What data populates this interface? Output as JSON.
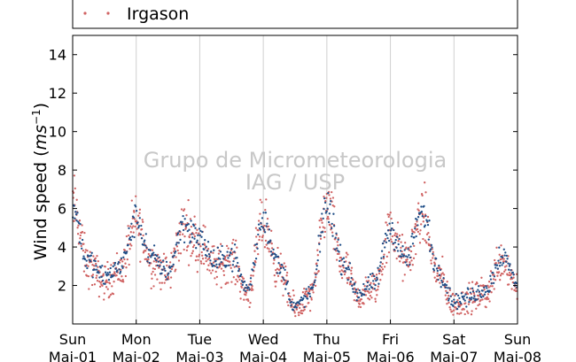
{
  "chart_data": {
    "type": "scatter",
    "title": "",
    "xlabel": "",
    "ylabel": "Wind speed (ms⁻¹)",
    "ylabel_main": "Wind speed (",
    "ylabel_unit_base": "ms",
    "ylabel_unit_exp": "−1",
    "ylabel_close": ")",
    "ylim": [
      0,
      15
    ],
    "yticks": [
      2,
      4,
      6,
      8,
      10,
      12,
      14
    ],
    "xlim": [
      0,
      7
    ],
    "grid": "vertical",
    "legend_placement": "top",
    "legend": [
      {
        "name": "Irgason",
        "color": "#d06262"
      }
    ],
    "watermark": [
      "Grupo de Micrometeorologia",
      "IAG / USP"
    ],
    "x_ticks": [
      {
        "day": "Sun",
        "date": "Mai-01"
      },
      {
        "day": "Mon",
        "date": "Mai-02"
      },
      {
        "day": "Tue",
        "date": "Mai-03"
      },
      {
        "day": "Wed",
        "date": "Mai-04"
      },
      {
        "day": "Thu",
        "date": "Mai-05"
      },
      {
        "day": "Fri",
        "date": "Mai-06"
      },
      {
        "day": "Sat",
        "date": "Mai-07"
      },
      {
        "day": "Sun",
        "date": "Mai-08"
      }
    ],
    "series": [
      {
        "name": "Irgason",
        "color": "#d06262",
        "x": [
          0,
          0.25,
          0.5,
          0.75,
          1,
          1.25,
          1.5,
          1.75,
          2,
          2.25,
          2.5,
          2.75,
          3,
          3.25,
          3.5,
          3.75,
          4,
          4.25,
          4.5,
          4.75,
          5,
          5.25,
          5.5,
          5.75,
          6,
          6.25,
          6.5,
          6.75,
          7
        ],
        "y": [
          6.2,
          3.0,
          2.2,
          2.8,
          5.2,
          3.2,
          2.6,
          5.0,
          4.2,
          3.0,
          3.4,
          1.6,
          5.2,
          2.8,
          0.8,
          1.4,
          6.0,
          3.0,
          1.4,
          1.9,
          4.8,
          3.2,
          5.6,
          2.6,
          1.0,
          1.3,
          1.6,
          3.4,
          2.0
        ]
      },
      {
        "name": "",
        "color": "#1f4e87",
        "x": [
          0,
          0.25,
          0.5,
          0.75,
          1,
          1.25,
          1.5,
          1.75,
          2,
          2.25,
          2.5,
          2.75,
          3,
          3.25,
          3.5,
          3.75,
          4,
          4.25,
          4.5,
          4.75,
          5,
          5.25,
          5.5,
          5.75,
          6,
          6.25,
          6.5,
          6.75,
          7
        ],
        "y": [
          6.0,
          3.2,
          2.4,
          3.0,
          5.4,
          3.4,
          2.8,
          5.2,
          4.4,
          3.2,
          3.6,
          1.8,
          5.4,
          3.0,
          0.9,
          1.6,
          6.2,
          3.2,
          1.6,
          2.1,
          4.9,
          3.4,
          5.8,
          2.8,
          1.2,
          1.4,
          1.8,
          3.6,
          2.2
        ]
      }
    ]
  }
}
